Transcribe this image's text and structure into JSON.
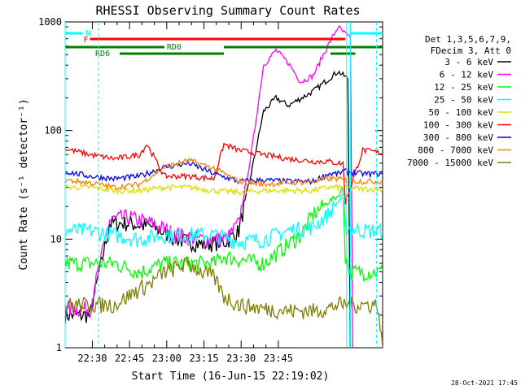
{
  "chart_data": {
    "type": "line",
    "title": "RHESSI Observing Summary Count Rates",
    "xlabel": "Start Time (16-Jun-15 22:19:02)",
    "ylabel": "Count Rate (s⁻¹ detector⁻¹)",
    "yscale": "log",
    "ylim": [
      1,
      1000
    ],
    "xlim_minutes_after_start": [
      0,
      128
    ],
    "x_ticks": [
      "22:30",
      "22:45",
      "23:00",
      "23:15",
      "23:30",
      "23:45"
    ],
    "y_ticks": [
      "1",
      "10",
      "100",
      "1000"
    ],
    "legend_header": [
      "Det 1,3,5,6,7,9,",
      "FDecim 3, Att 0"
    ],
    "legend_position": "right",
    "footer_date": "28-Oct-2021 17:45",
    "flags": [
      {
        "label": "N",
        "color": "#00ffff"
      },
      {
        "label": "F",
        "color": "#ff0000"
      },
      {
        "label": "RD0",
        "color": "#007f00"
      },
      {
        "label": "RD6",
        "color": "#007f00"
      }
    ],
    "series": [
      {
        "name": "3 - 6 keV",
        "color": "#000000",
        "x": [
          0,
          10,
          18,
          25,
          35,
          45,
          55,
          65,
          70,
          75,
          80,
          85,
          90,
          100,
          110,
          114,
          115
        ],
        "y": [
          2.0,
          2.0,
          14,
          14,
          13,
          10,
          9,
          9.5,
          12,
          40,
          150,
          200,
          170,
          230,
          350,
          300,
          1
        ]
      },
      {
        "name": "6 - 12 keV",
        "color": "#ff00ff",
        "x": [
          0,
          10,
          18,
          25,
          35,
          45,
          55,
          65,
          70,
          75,
          80,
          85,
          90,
          95,
          100,
          105,
          110,
          115,
          116
        ],
        "y": [
          2.3,
          2.3,
          15,
          16,
          14,
          11,
          10,
          10,
          14,
          60,
          400,
          550,
          420,
          280,
          320,
          550,
          900,
          700,
          1
        ]
      },
      {
        "name": "12 - 25 keV",
        "color": "#00ff00",
        "x": [
          0,
          10,
          20,
          30,
          40,
          50,
          60,
          64,
          70,
          80,
          90,
          95,
          100,
          106,
          110,
          112,
          113,
          115,
          125,
          128
        ],
        "y": [
          6.0,
          6.0,
          6.0,
          5.0,
          6.0,
          6.0,
          6.0,
          7.0,
          6.5,
          6.0,
          9,
          11,
          17,
          22,
          25,
          30,
          7.0,
          5.0,
          5.0,
          5.0
        ]
      },
      {
        "name": "25 - 50 keV",
        "color": "#00ffff",
        "x": [
          0,
          10,
          20,
          30,
          40,
          50,
          60,
          70,
          80,
          90,
          100,
          106,
          110,
          112,
          113,
          120,
          128
        ],
        "y": [
          12,
          12,
          11,
          10,
          11,
          11,
          11,
          9.5,
          10,
          12,
          13,
          17,
          22,
          25,
          13,
          12,
          12
        ]
      },
      {
        "name": "50 - 100 keV",
        "color": "#dddd00",
        "x": [
          0,
          10,
          20,
          30,
          40,
          50,
          60,
          70,
          80,
          90,
          100,
          106,
          110,
          112,
          113,
          120,
          128
        ],
        "y": [
          30,
          30,
          28,
          28,
          30,
          30,
          28,
          27,
          28,
          28,
          28,
          30,
          30,
          30,
          30,
          29,
          29
        ]
      },
      {
        "name": "100 - 300 keV",
        "color": "#ff0000",
        "x": [
          0,
          10,
          20,
          30,
          33,
          40,
          50,
          60,
          64,
          70,
          80,
          90,
          100,
          106,
          110,
          112,
          113,
          120,
          128
        ],
        "y": [
          68,
          60,
          55,
          60,
          75,
          38,
          38,
          36,
          75,
          66,
          60,
          55,
          52,
          52,
          50,
          50,
          22,
          66,
          62
        ]
      },
      {
        "name": "300 - 800 keV",
        "color": "#0000ff",
        "x": [
          0,
          10,
          20,
          30,
          40,
          50,
          60,
          70,
          80,
          90,
          100,
          106,
          110,
          112,
          113,
          120,
          128
        ],
        "y": [
          42,
          38,
          36,
          38,
          46,
          50,
          40,
          34,
          35,
          34,
          34,
          40,
          40,
          42,
          42,
          40,
          40
        ]
      },
      {
        "name": "800 - 7000 keV",
        "color": "#ff7f00",
        "x": [
          0,
          10,
          20,
          30,
          40,
          50,
          60,
          70,
          80,
          90,
          100,
          106,
          110,
          112,
          113,
          120,
          128
        ],
        "y": [
          35,
          33,
          30,
          32,
          46,
          53,
          45,
          34,
          32,
          33,
          34,
          36,
          36,
          35,
          35,
          34,
          34
        ]
      },
      {
        "name": "7000 - 15000 keV",
        "color": "#7f7f00",
        "x": [
          0,
          10,
          20,
          30,
          35,
          40,
          50,
          55,
          60,
          64,
          70,
          80,
          90,
          100,
          106,
          110,
          112,
          120,
          126,
          128
        ],
        "y": [
          2.5,
          2.5,
          2.5,
          3.5,
          4.0,
          5.0,
          6.0,
          5.0,
          4.5,
          3.0,
          2.5,
          2.3,
          2.2,
          2.2,
          2.3,
          2.5,
          2.5,
          2.5,
          2.5,
          1
        ]
      }
    ]
  }
}
